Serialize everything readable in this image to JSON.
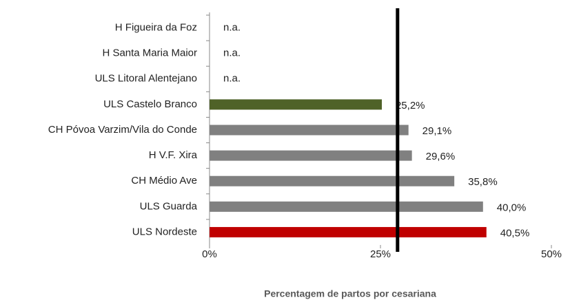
{
  "chart_data": {
    "type": "bar",
    "orientation": "horizontal",
    "x_label": "Percentagem de partos por cesariana",
    "categories": [
      "H Figueira da Foz",
      "H Santa Maria Maior",
      "ULS Litoral Alentejano",
      "ULS Castelo Branco",
      "CH Póvoa Varzim/Vila do Conde",
      "H V.F. Xira",
      "CH Médio Ave",
      "ULS Guarda",
      "ULS Nordeste"
    ],
    "values": [
      null,
      null,
      null,
      25.2,
      29.1,
      29.6,
      35.8,
      40.0,
      40.5
    ],
    "value_labels": [
      "n.a.",
      "n.a.",
      "n.a.",
      "25,2%",
      "29,1%",
      "29,6%",
      "35,8%",
      "40,0%",
      "40,5%"
    ],
    "colors": [
      "#808080",
      "#808080",
      "#808080",
      "#4f6228",
      "#808080",
      "#808080",
      "#808080",
      "#808080",
      "#c00000"
    ],
    "reference_line": 27.5,
    "reference_color": "#000000",
    "xlim": [
      0,
      50
    ],
    "xticks": [
      {
        "value": 0,
        "label": "0%"
      },
      {
        "value": 25,
        "label": "25%"
      },
      {
        "value": 50,
        "label": "50%"
      }
    ]
  }
}
